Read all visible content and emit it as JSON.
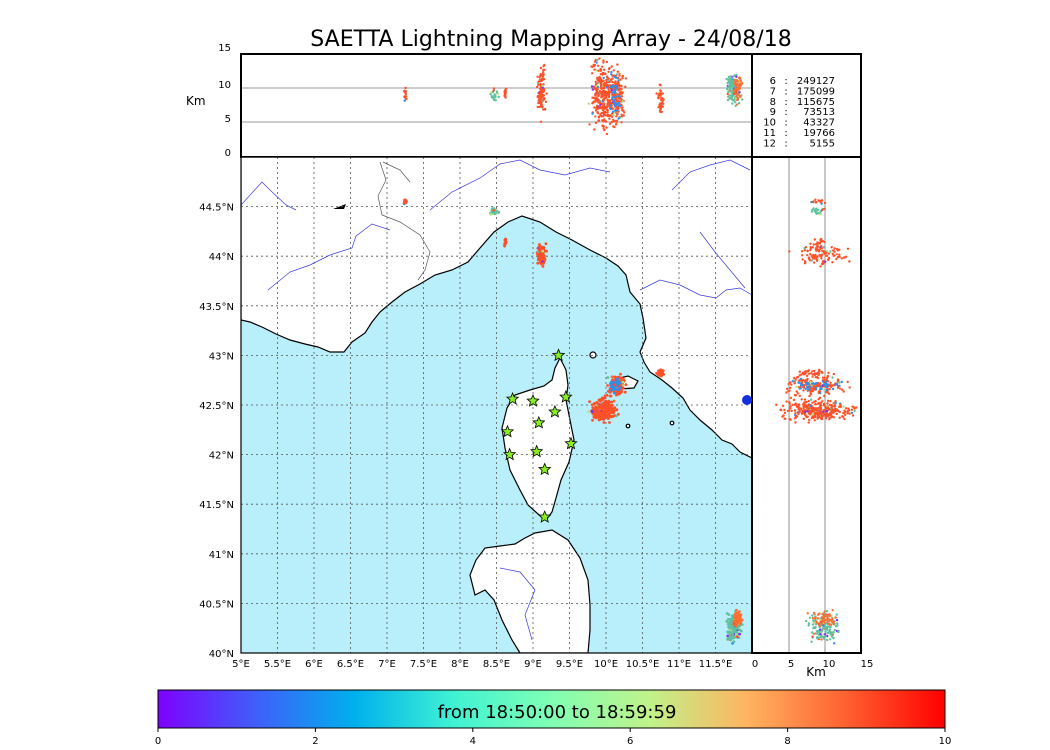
{
  "title": "SAETTA Lightning Mapping Array - 24/08/18",
  "colors": {
    "sea": "#b9eefb",
    "land": "#ffffff",
    "coast": "#000000",
    "rivers": "#3a3ae0",
    "station_fill": "#88ee22",
    "highlight": "#ff0000"
  },
  "altitude_panel": {
    "ylabel": "Km",
    "yticks": [
      "15",
      "10",
      "5",
      "0"
    ],
    "ylim": [
      0,
      15
    ]
  },
  "side_panel": {
    "xlabel": "Km",
    "xticks": [
      "0",
      "5",
      "10",
      "15"
    ],
    "xlim": [
      0,
      15
    ]
  },
  "map": {
    "lon_ticks": [
      "5°E",
      "5.5°E",
      "6°E",
      "6.5°E",
      "7°E",
      "7.5°E",
      "8°E",
      "8.5°E",
      "9°E",
      "9.5°E",
      "10°E",
      "10.5°E",
      "11°E",
      "11.5°E"
    ],
    "lat_ticks": [
      "44.5°N",
      "44°N",
      "43.5°N",
      "43°N",
      "42.5°N",
      "42°N",
      "41.5°N",
      "41°N",
      "40.5°N",
      "40°N"
    ],
    "lon_range": [
      5,
      12
    ],
    "lat_range": [
      40,
      45
    ]
  },
  "legend": [
    {
      "hour": "6",
      "sep": ":",
      "count": "249127",
      "highlight": false
    },
    {
      "hour": "7",
      "sep": ":",
      "count": "175099",
      "highlight": true
    },
    {
      "hour": "8",
      "sep": ":",
      "count": "115675",
      "highlight": false
    },
    {
      "hour": "9",
      "sep": ":",
      "count": "73513",
      "highlight": false
    },
    {
      "hour": "10",
      "sep": ":",
      "count": "43327",
      "highlight": false
    },
    {
      "hour": "11",
      "sep": ":",
      "count": "19766",
      "highlight": false
    },
    {
      "hour": "12",
      "sep": ":",
      "count": "5155",
      "highlight": false
    }
  ],
  "colorbar": {
    "label": "from 18:50:00 to 18:59:59",
    "ticks": [
      "0",
      "2",
      "4",
      "6",
      "8",
      "10"
    ],
    "range": [
      0,
      10
    ],
    "colors": [
      "#7f00ff",
      "#3f5ffa",
      "#00b0ed",
      "#3ff2d3",
      "#80ffb4",
      "#c0f28a",
      "#ffb360",
      "#ff6030",
      "#ff0000"
    ]
  },
  "stations": [
    {
      "lon": 9.35,
      "lat": 43.0
    },
    {
      "lon": 8.72,
      "lat": 42.56
    },
    {
      "lon": 9.0,
      "lat": 42.54
    },
    {
      "lon": 9.45,
      "lat": 42.58
    },
    {
      "lon": 9.3,
      "lat": 42.43
    },
    {
      "lon": 9.08,
      "lat": 42.32
    },
    {
      "lon": 8.65,
      "lat": 42.23
    },
    {
      "lon": 9.52,
      "lat": 42.11
    },
    {
      "lon": 8.68,
      "lat": 42.0
    },
    {
      "lon": 9.05,
      "lat": 42.03
    },
    {
      "lon": 9.16,
      "lat": 41.85
    },
    {
      "lon": 9.16,
      "lat": 41.37
    }
  ],
  "lightning_clusters": [
    {
      "lon": 7.25,
      "lat": 44.55,
      "alt": 9,
      "spread_lon": 0.02,
      "spread_lat": 0.03,
      "spread_alt": 1.0,
      "n": 15,
      "color": "#ff5028"
    },
    {
      "lon": 8.47,
      "lat": 44.45,
      "alt": 9,
      "spread_lon": 0.05,
      "spread_lat": 0.03,
      "spread_alt": 1.0,
      "n": 25,
      "color": "#60c0a0"
    },
    {
      "lon": 8.62,
      "lat": 44.14,
      "alt": 9,
      "spread_lon": 0.02,
      "spread_lat": 0.04,
      "spread_alt": 0.8,
      "n": 15,
      "color": "#ff5028"
    },
    {
      "lon": 9.12,
      "lat": 44.02,
      "alt": 9.5,
      "spread_lon": 0.05,
      "spread_lat": 0.1,
      "spread_alt": 3.0,
      "n": 110,
      "color": "#ff5028"
    },
    {
      "lon": 9.95,
      "lat": 42.45,
      "alt": 9,
      "spread_lon": 0.15,
      "spread_lat": 0.1,
      "spread_alt": 4.5,
      "n": 320,
      "color": "#ff5028"
    },
    {
      "lon": 10.15,
      "lat": 42.7,
      "alt": 9,
      "spread_lon": 0.1,
      "spread_lat": 0.09,
      "spread_alt": 4.0,
      "n": 150,
      "color": "#ff5028"
    },
    {
      "lon": 10.12,
      "lat": 42.7,
      "alt": 9,
      "spread_lon": 0.06,
      "spread_lat": 0.05,
      "spread_alt": 4.0,
      "n": 50,
      "color": "#2a8ff0"
    },
    {
      "lon": 10.75,
      "lat": 42.82,
      "alt": 8.5,
      "spread_lon": 0.05,
      "spread_lat": 0.03,
      "spread_alt": 2.0,
      "n": 40,
      "color": "#ff5028"
    },
    {
      "lon": 11.75,
      "lat": 40.25,
      "alt": 10,
      "spread_lon": 0.1,
      "spread_lat": 0.15,
      "spread_alt": 2.0,
      "n": 130,
      "color": "#60c0a0"
    },
    {
      "lon": 11.8,
      "lat": 40.35,
      "alt": 10,
      "spread_lon": 0.06,
      "spread_lat": 0.08,
      "spread_alt": 2.0,
      "n": 60,
      "color": "#ff7030"
    }
  ]
}
